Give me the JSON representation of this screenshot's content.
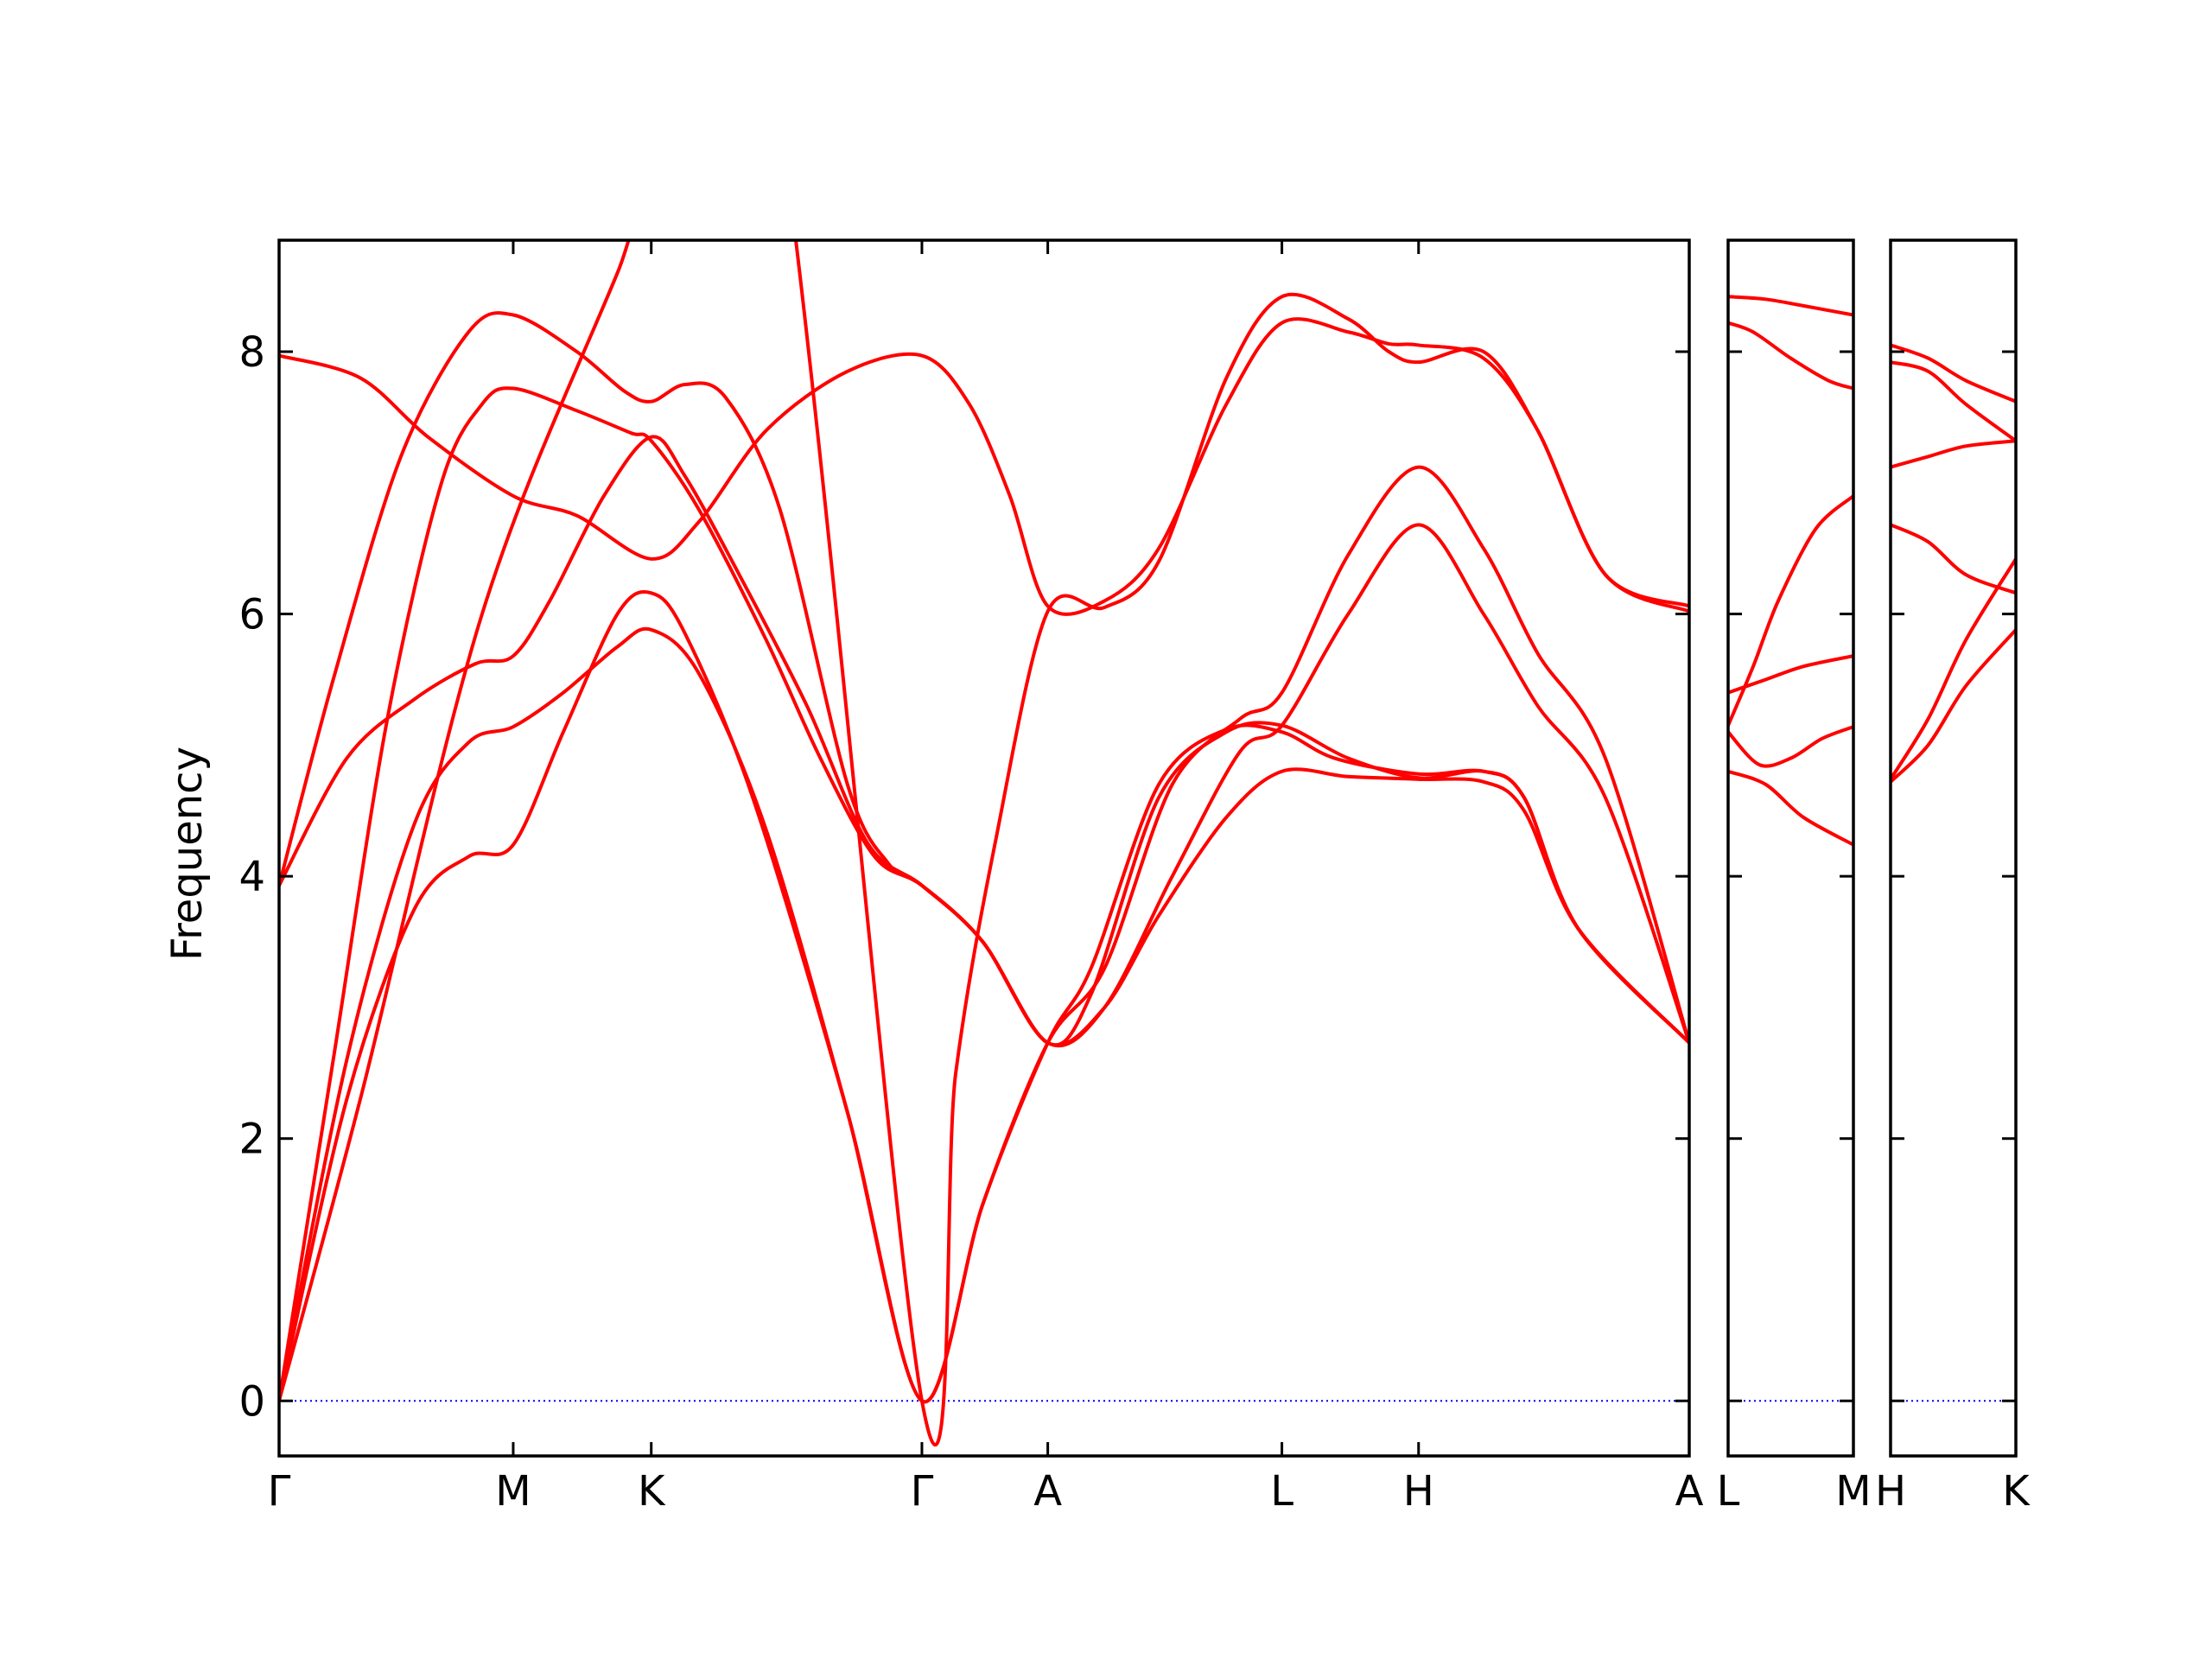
{
  "chart_data": {
    "type": "line",
    "ylabel": "Frequency",
    "ylim": [
      -0.42,
      8.85
    ],
    "yticks": [
      0,
      2,
      4,
      6,
      8
    ],
    "grid": false,
    "line_color": "#ff0000",
    "zero_line_color": "#0000ff",
    "panels": [
      {
        "x_range": [
          0,
          10.42
        ],
        "xticks": [
          {
            "label": "Γ",
            "x": 0
          },
          {
            "label": "M",
            "x": 1.73
          },
          {
            "label": "K",
            "x": 2.75
          },
          {
            "label": "Γ",
            "x": 4.75
          },
          {
            "label": "A",
            "x": 5.68
          },
          {
            "label": "L",
            "x": 7.41
          },
          {
            "label": "H",
            "x": 8.42
          },
          {
            "label": "A",
            "x": 10.42
          }
        ],
        "bands": [
          [
            [
              0,
              7.97
            ],
            [
              0.6,
              7.8
            ],
            [
              1.1,
              7.35
            ],
            [
              1.73,
              6.9
            ],
            [
              2.2,
              6.75
            ],
            [
              2.75,
              6.42
            ],
            [
              3.1,
              6.7
            ],
            [
              3.6,
              7.4
            ],
            [
              4.2,
              7.85
            ],
            [
              4.75,
              7.97
            ],
            [
              5.1,
              7.6
            ],
            [
              5.4,
              6.9
            ],
            [
              5.68,
              6.06
            ],
            [
              6.1,
              6.1
            ],
            [
              6.5,
              6.5
            ],
            [
              7.0,
              7.6
            ],
            [
              7.41,
              8.22
            ],
            [
              7.9,
              8.15
            ],
            [
              8.2,
              8.06
            ],
            [
              8.42,
              8.05
            ],
            [
              8.9,
              7.95
            ],
            [
              9.3,
              7.4
            ],
            [
              9.8,
              6.3
            ],
            [
              10.42,
              6.06
            ]
          ],
          [
            [
              0,
              3.93
            ],
            [
              0.5,
              4.9
            ],
            [
              1.0,
              5.35
            ],
            [
              1.45,
              5.62
            ],
            [
              1.73,
              5.68
            ],
            [
              2.0,
              6.1
            ],
            [
              2.4,
              6.9
            ],
            [
              2.75,
              7.35
            ],
            [
              3.0,
              7.05
            ],
            [
              3.4,
              6.3
            ],
            [
              3.9,
              5.3
            ],
            [
              4.35,
              4.25
            ],
            [
              4.75,
              3.93
            ],
            [
              5.2,
              3.5
            ],
            [
              5.68,
              2.73
            ],
            [
              6.1,
              3.0
            ],
            [
              6.5,
              3.7
            ],
            [
              7.0,
              4.45
            ],
            [
              7.41,
              4.8
            ],
            [
              7.9,
              4.76
            ],
            [
              8.42,
              4.74
            ],
            [
              8.9,
              4.72
            ],
            [
              9.2,
              4.5
            ],
            [
              9.6,
              3.6
            ],
            [
              10.42,
              2.73
            ]
          ],
          [
            [
              0,
              3.93
            ],
            [
              0.4,
              5.5
            ],
            [
              0.9,
              7.2
            ],
            [
              1.4,
              8.15
            ],
            [
              1.73,
              8.28
            ],
            [
              2.2,
              8.0
            ],
            [
              2.55,
              7.7
            ],
            [
              2.75,
              7.62
            ],
            [
              3.0,
              7.75
            ],
            [
              3.3,
              7.65
            ],
            [
              3.7,
              6.8
            ],
            [
              4.2,
              4.7
            ],
            [
              4.5,
              4.1
            ],
            [
              4.75,
              3.93
            ],
            [
              5.2,
              3.5
            ],
            [
              5.68,
              2.73
            ],
            [
              6.0,
              3.1
            ],
            [
              6.5,
              4.6
            ],
            [
              7.0,
              5.1
            ],
            [
              7.41,
              5.15
            ],
            [
              7.9,
              4.9
            ],
            [
              8.42,
              4.75
            ],
            [
              8.9,
              4.8
            ],
            [
              9.2,
              4.6
            ],
            [
              9.6,
              3.6
            ],
            [
              10.42,
              2.73
            ]
          ],
          [
            [
              0,
              0
            ],
            [
              0.5,
              2.6
            ],
            [
              1.0,
              4.4
            ],
            [
              1.4,
              5.02
            ],
            [
              1.73,
              5.14
            ],
            [
              2.1,
              5.4
            ],
            [
              2.5,
              5.75
            ],
            [
              2.75,
              5.88
            ],
            [
              3.1,
              5.55
            ],
            [
              3.6,
              4.35
            ],
            [
              4.2,
              2.2
            ],
            [
              4.75,
              0
            ],
            [
              5.2,
              1.5
            ],
            [
              5.68,
              2.73
            ],
            [
              6.0,
              3.3
            ],
            [
              6.5,
              4.7
            ],
            [
              7.0,
              5.12
            ],
            [
              7.41,
              5.1
            ],
            [
              7.8,
              4.9
            ],
            [
              8.42,
              4.78
            ],
            [
              8.9,
              4.8
            ],
            [
              9.2,
              4.6
            ],
            [
              9.6,
              3.6
            ],
            [
              10.42,
              2.73
            ]
          ],
          [
            [
              0,
              0
            ],
            [
              0.5,
              2.3
            ],
            [
              1.0,
              3.75
            ],
            [
              1.4,
              4.15
            ],
            [
              1.73,
              4.24
            ],
            [
              2.1,
              5.1
            ],
            [
              2.5,
              6.0
            ],
            [
              2.75,
              6.16
            ],
            [
              3.0,
              5.85
            ],
            [
              3.5,
              4.6
            ],
            [
              4.2,
              2.2
            ],
            [
              4.75,
              0
            ],
            [
              5.2,
              1.5
            ],
            [
              5.68,
              2.73
            ],
            [
              6.1,
              3.3
            ],
            [
              6.6,
              4.7
            ],
            [
              7.1,
              5.2
            ],
            [
              7.41,
              5.4
            ],
            [
              7.9,
              6.45
            ],
            [
              8.42,
              7.12
            ],
            [
              8.9,
              6.5
            ],
            [
              9.3,
              5.7
            ],
            [
              9.8,
              4.9
            ],
            [
              10.42,
              2.73
            ]
          ],
          [
            [
              0,
              0
            ],
            [
              0.4,
              2.6
            ],
            [
              0.8,
              5.2
            ],
            [
              1.2,
              7.0
            ],
            [
              1.5,
              7.6
            ],
            [
              1.73,
              7.72
            ],
            [
              2.2,
              7.55
            ],
            [
              2.6,
              7.38
            ],
            [
              2.75,
              7.32
            ],
            [
              3.1,
              6.8
            ],
            [
              3.6,
              5.8
            ],
            [
              4.0,
              4.9
            ],
            [
              4.4,
              4.15
            ],
            [
              4.75,
              3.93
            ],
            [
              5.2,
              3.5
            ],
            [
              5.68,
              2.73
            ],
            [
              6.1,
              3.0
            ],
            [
              6.6,
              4.0
            ],
            [
              7.1,
              4.95
            ],
            [
              7.41,
              5.15
            ],
            [
              7.9,
              6.0
            ],
            [
              8.42,
              6.68
            ],
            [
              8.9,
              6.0
            ],
            [
              9.3,
              5.3
            ],
            [
              9.8,
              4.6
            ],
            [
              10.42,
              2.73
            ]
          ],
          [
            [
              0,
              0
            ],
            [
              0.6,
              2.3
            ],
            [
              1.5,
              6.0
            ],
            [
              2.5,
              8.6
            ],
            [
              3.5,
              11.0
            ],
            [
              4.75,
              0
            ],
            [
              5.0,
              2.5
            ],
            [
              5.3,
              4.3
            ],
            [
              5.68,
              6.02
            ],
            [
              6.1,
              6.05
            ],
            [
              6.5,
              6.4
            ],
            [
              7.0,
              7.8
            ],
            [
              7.41,
              8.42
            ],
            [
              7.9,
              8.25
            ],
            [
              8.2,
              8.0
            ],
            [
              8.42,
              7.92
            ],
            [
              8.9,
              8.0
            ],
            [
              9.3,
              7.4
            ],
            [
              9.8,
              6.3
            ],
            [
              10.42,
              6.02
            ]
          ]
        ]
      },
      {
        "x_range": [
          0,
          1.0
        ],
        "xticks": [
          {
            "label": "L",
            "x": 0
          },
          {
            "label": "M",
            "x": 1.0
          }
        ],
        "bands": [
          [
            [
              0,
              8.42
            ],
            [
              0.3,
              8.4
            ],
            [
              0.6,
              8.35
            ],
            [
              1.0,
              8.28
            ]
          ],
          [
            [
              0,
              8.22
            ],
            [
              0.2,
              8.15
            ],
            [
              0.5,
              7.95
            ],
            [
              0.8,
              7.78
            ],
            [
              1.0,
              7.72
            ]
          ],
          [
            [
              0,
              5.15
            ],
            [
              0.2,
              5.6
            ],
            [
              0.4,
              6.1
            ],
            [
              0.7,
              6.65
            ],
            [
              1.0,
              6.9
            ]
          ],
          [
            [
              0,
              5.4
            ],
            [
              0.3,
              5.5
            ],
            [
              0.6,
              5.6
            ],
            [
              1.0,
              5.68
            ]
          ],
          [
            [
              0,
              5.1
            ],
            [
              0.25,
              4.85
            ],
            [
              0.5,
              4.9
            ],
            [
              0.75,
              5.05
            ],
            [
              1.0,
              5.14
            ]
          ],
          [
            [
              0,
              4.8
            ],
            [
              0.3,
              4.7
            ],
            [
              0.6,
              4.45
            ],
            [
              1.0,
              4.24
            ]
          ]
        ]
      },
      {
        "x_range": [
          0,
          1.0
        ],
        "xticks": [
          {
            "label": "H",
            "x": 0
          },
          {
            "label": "K",
            "x": 1.0
          }
        ],
        "bands": [
          [
            [
              0,
              8.05
            ],
            [
              0.3,
              7.95
            ],
            [
              0.6,
              7.78
            ],
            [
              1.0,
              7.62
            ]
          ],
          [
            [
              0,
              7.92
            ],
            [
              0.3,
              7.85
            ],
            [
              0.6,
              7.6
            ],
            [
              1.0,
              7.32
            ]
          ],
          [
            [
              0,
              7.12
            ],
            [
              0.3,
              7.2
            ],
            [
              0.6,
              7.28
            ],
            [
              1.0,
              7.32
            ]
          ],
          [
            [
              0,
              6.68
            ],
            [
              0.3,
              6.55
            ],
            [
              0.6,
              6.3
            ],
            [
              1.0,
              6.16
            ]
          ],
          [
            [
              0,
              4.74
            ],
            [
              0.3,
              5.2
            ],
            [
              0.6,
              5.8
            ],
            [
              1.0,
              6.42
            ]
          ],
          [
            [
              0,
              4.72
            ],
            [
              0.3,
              5.0
            ],
            [
              0.6,
              5.45
            ],
            [
              1.0,
              5.88
            ]
          ]
        ]
      }
    ]
  }
}
